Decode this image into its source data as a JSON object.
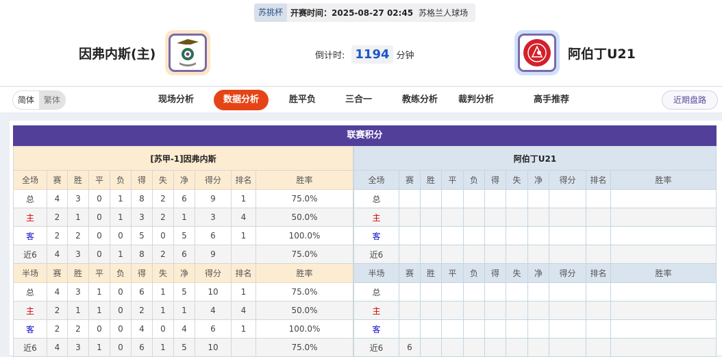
{
  "match": {
    "cup": "苏挑杯",
    "kickoff": "开赛时间：2025-08-27 02:45",
    "venue": "苏格兰人球场",
    "home": "因弗内斯(主)",
    "away": "阿伯丁U21",
    "countdown_label": "倒计时:",
    "countdown_value": "1194",
    "countdown_unit": "分钟"
  },
  "nav": {
    "lang": [
      "简体",
      "繁体"
    ],
    "tabs": [
      "现场分析",
      "数据分析",
      "胜平负",
      "三合一",
      "教练分析",
      "裁判分析",
      "高手推荐"
    ],
    "active": "数据分析",
    "recent": "近期盘路"
  },
  "standings": {
    "title": "联赛积分",
    "home_team": "[苏甲-1]因弗内斯",
    "away_team": "阿伯丁U21",
    "full_header": [
      "全场",
      "赛",
      "胜",
      "平",
      "负",
      "得",
      "失",
      "净",
      "得分",
      "排名",
      "胜率"
    ],
    "half_header": [
      "半场",
      "赛",
      "胜",
      "平",
      "负",
      "得",
      "失",
      "净",
      "得分",
      "排名",
      "胜率"
    ],
    "home_full": [
      [
        "总",
        "4",
        "3",
        "0",
        "1",
        "8",
        "2",
        "6",
        "9",
        "1",
        "75.0%"
      ],
      [
        "主",
        "2",
        "1",
        "0",
        "1",
        "3",
        "2",
        "1",
        "3",
        "4",
        "50.0%"
      ],
      [
        "客",
        "2",
        "2",
        "0",
        "0",
        "5",
        "0",
        "5",
        "6",
        "1",
        "100.0%"
      ],
      [
        "近6",
        "4",
        "3",
        "0",
        "1",
        "8",
        "2",
        "6",
        "9",
        "",
        "75.0%"
      ]
    ],
    "home_half": [
      [
        "总",
        "4",
        "3",
        "1",
        "0",
        "6",
        "1",
        "5",
        "10",
        "1",
        "75.0%"
      ],
      [
        "主",
        "2",
        "1",
        "1",
        "0",
        "2",
        "1",
        "1",
        "4",
        "4",
        "50.0%"
      ],
      [
        "客",
        "2",
        "2",
        "0",
        "0",
        "4",
        "0",
        "4",
        "6",
        "1",
        "100.0%"
      ],
      [
        "近6",
        "4",
        "3",
        "1",
        "0",
        "6",
        "1",
        "5",
        "10",
        "",
        "75.0%"
      ]
    ],
    "away_full": [
      [
        "总",
        "",
        "",
        "",
        "",
        "",
        "",
        "",
        "",
        "",
        ""
      ],
      [
        "主",
        "",
        "",
        "",
        "",
        "",
        "",
        "",
        "",
        "",
        ""
      ],
      [
        "客",
        "",
        "",
        "",
        "",
        "",
        "",
        "",
        "",
        "",
        ""
      ],
      [
        "近6",
        "",
        "",
        "",
        "",
        "",
        "",
        "",
        "",
        "",
        ""
      ]
    ],
    "away_half": [
      [
        "总",
        "",
        "",
        "",
        "",
        "",
        "",
        "",
        "",
        "",
        ""
      ],
      [
        "主",
        "",
        "",
        "",
        "",
        "",
        "",
        "",
        "",
        "",
        ""
      ],
      [
        "客",
        "",
        "",
        "",
        "",
        "",
        "",
        "",
        "",
        "",
        ""
      ],
      [
        "近6",
        "6",
        "",
        "",
        "",
        "",
        "",
        "",
        "",
        "",
        ""
      ]
    ]
  },
  "colors": {
    "accent": "#e54516",
    "title_bar": "#523f9a",
    "home_label": "#d40000",
    "away_label": "#1010d0"
  }
}
